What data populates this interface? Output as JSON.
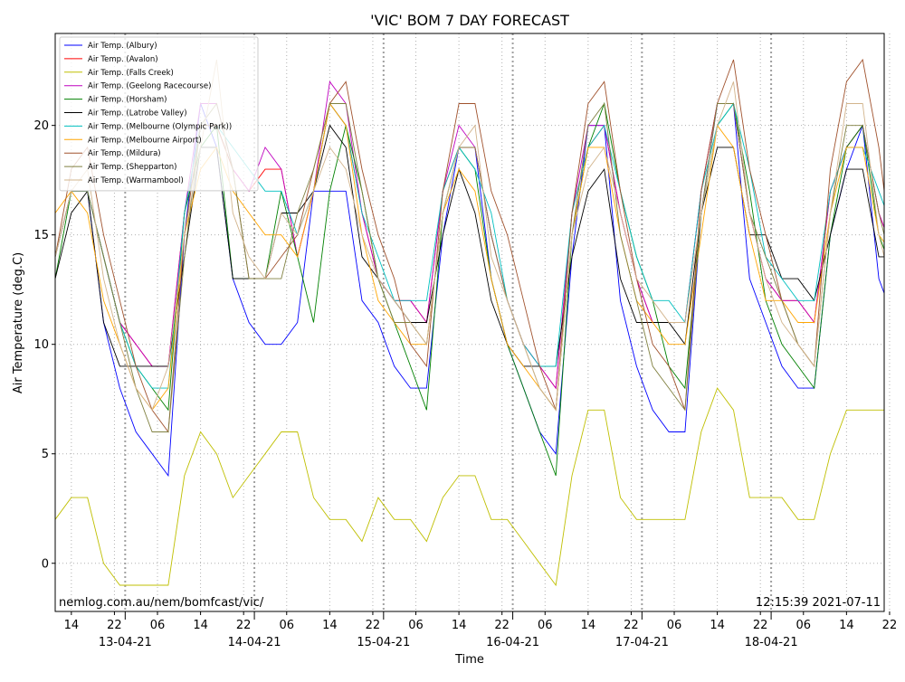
{
  "chart_data": {
    "type": "line",
    "title": "'VIC' BOM 7 DAY FORECAST",
    "xlabel": "Time",
    "ylabel": "Air Temperature (deg.C)",
    "ylim": [
      -2.2,
      24.2
    ],
    "yticks": [
      0,
      5,
      10,
      15,
      20
    ],
    "xlim": [
      11,
      165
    ],
    "grid": true,
    "legend_position": "top-left",
    "hour_ticks": [
      {
        "x": 14,
        "label": "14"
      },
      {
        "x": 22,
        "label": "22"
      },
      {
        "x": 30,
        "label": "06"
      },
      {
        "x": 38,
        "label": "14"
      },
      {
        "x": 46,
        "label": "22"
      },
      {
        "x": 54,
        "label": "06"
      },
      {
        "x": 62,
        "label": "14"
      },
      {
        "x": 70,
        "label": "22"
      },
      {
        "x": 78,
        "label": "06"
      },
      {
        "x": 86,
        "label": "14"
      },
      {
        "x": 94,
        "label": "22"
      },
      {
        "x": 102,
        "label": "06"
      },
      {
        "x": 110,
        "label": "14"
      },
      {
        "x": 118,
        "label": "22"
      },
      {
        "x": 126,
        "label": "06"
      },
      {
        "x": 134,
        "label": "14"
      },
      {
        "x": 142,
        "label": "22"
      },
      {
        "x": 150,
        "label": "06"
      },
      {
        "x": 158,
        "label": "14"
      },
      {
        "x": 166,
        "label": "22"
      }
    ],
    "day_ticks": [
      {
        "x": 24,
        "label": "13-04-21"
      },
      {
        "x": 48,
        "label": "14-04-21"
      },
      {
        "x": 72,
        "label": "15-04-21"
      },
      {
        "x": 96,
        "label": "16-04-21"
      },
      {
        "x": 120,
        "label": "17-04-21"
      },
      {
        "x": 144,
        "label": "18-04-21"
      }
    ],
    "x": [
      11,
      14,
      17,
      20,
      23,
      26,
      29,
      32,
      35,
      38,
      41,
      44,
      47,
      50,
      53,
      56,
      59,
      62,
      65,
      68,
      71,
      74,
      77,
      80,
      83,
      86,
      89,
      92,
      95,
      98,
      101,
      104,
      107,
      110,
      113,
      116,
      119,
      122,
      125,
      128,
      131,
      134,
      137,
      140,
      143,
      146,
      149,
      152,
      155,
      158,
      161,
      164,
      167
    ],
    "series": [
      {
        "name": "Air Temp. (Albury)",
        "color": "#0000ff",
        "values": [
          14,
          17,
          17,
          11,
          8,
          6,
          5,
          4,
          15,
          21,
          19,
          13,
          11,
          10,
          10,
          11,
          17,
          17,
          17,
          12,
          11,
          9,
          8,
          8,
          15,
          19,
          19,
          13,
          10,
          8,
          6,
          5,
          14,
          20,
          20,
          12,
          9,
          7,
          6,
          6,
          16,
          21,
          21,
          13,
          11,
          9,
          8,
          8,
          15,
          18,
          20,
          13,
          11
        ]
      },
      {
        "name": "Air Temp. (Avalon)",
        "color": "#ff0000",
        "values": [
          14,
          17,
          17,
          14,
          11,
          10,
          9,
          9,
          16,
          20,
          20,
          18,
          17,
          18,
          18,
          14,
          17,
          21,
          20,
          16,
          13,
          12,
          12,
          11,
          17,
          19,
          19,
          15,
          12,
          10,
          9,
          8,
          16,
          19,
          20,
          16,
          13,
          11,
          11,
          11,
          17,
          21,
          21,
          16,
          13,
          12,
          12,
          11,
          17,
          19,
          20,
          16,
          14
        ]
      },
      {
        "name": "Air Temp. (Falls Creek)",
        "color": "#bfbf00",
        "values": [
          2,
          3,
          3,
          0,
          -1,
          -1,
          -1,
          -1,
          4,
          6,
          5,
          3,
          4,
          5,
          6,
          6,
          3,
          2,
          2,
          1,
          3,
          2,
          2,
          1,
          3,
          4,
          4,
          2,
          2,
          1,
          0,
          -1,
          4,
          7,
          7,
          3,
          2,
          2,
          2,
          2,
          6,
          8,
          7,
          3,
          3,
          3,
          2,
          2,
          5,
          7,
          7,
          7,
          7
        ]
      },
      {
        "name": "Air Temp. (Geelong Racecourse)",
        "color": "#bf00bf",
        "values": [
          14,
          17,
          17,
          14,
          11,
          10,
          9,
          9,
          16,
          21,
          21,
          18,
          17,
          19,
          18,
          14,
          17,
          22,
          21,
          16,
          13,
          12,
          12,
          11,
          17,
          20,
          19,
          15,
          12,
          10,
          9,
          8,
          16,
          20,
          20,
          16,
          13,
          11,
          11,
          11,
          17,
          21,
          21,
          16,
          13,
          12,
          12,
          11,
          17,
          19,
          20,
          16,
          14
        ]
      },
      {
        "name": "Air Temp. (Horsham)",
        "color": "#008000",
        "values": [
          13,
          17,
          17,
          14,
          11,
          9,
          8,
          7,
          16,
          19,
          20,
          13,
          13,
          13,
          17,
          14,
          11,
          17,
          20,
          17,
          13,
          11,
          9,
          7,
          16,
          19,
          18,
          13,
          10,
          8,
          6,
          4,
          15,
          19,
          21,
          17,
          14,
          12,
          9,
          8,
          16,
          20,
          21,
          17,
          12,
          10,
          9,
          8,
          15,
          19,
          20,
          15,
          13
        ]
      },
      {
        "name": "Air Temp. (Latrobe Valley)",
        "color": "#000000",
        "values": [
          13,
          16,
          17,
          11,
          9,
          9,
          9,
          9,
          14,
          19,
          19,
          13,
          13,
          13,
          16,
          16,
          17,
          20,
          19,
          14,
          13,
          12,
          11,
          11,
          15,
          18,
          16,
          12,
          10,
          9,
          9,
          9,
          14,
          17,
          18,
          13,
          11,
          11,
          11,
          10,
          16,
          19,
          19,
          15,
          15,
          13,
          13,
          12,
          15,
          18,
          18,
          14,
          14
        ]
      },
      {
        "name": "Air Temp. (Melbourne (Olympic Park))",
        "color": "#00bfbf",
        "values": [
          14,
          17,
          17,
          14,
          11,
          9,
          8,
          8,
          16,
          20,
          20,
          19,
          18,
          17,
          17,
          15,
          17,
          21,
          20,
          16,
          14,
          12,
          12,
          12,
          17,
          19,
          18,
          16,
          12,
          10,
          9,
          9,
          16,
          19,
          20,
          17,
          14,
          12,
          12,
          11,
          17,
          20,
          21,
          18,
          14,
          13,
          12,
          12,
          17,
          19,
          19,
          17,
          15
        ]
      },
      {
        "name": "Air Temp. (Melbourne Airport)",
        "color": "#ffa500",
        "values": [
          16,
          17,
          16,
          12,
          10,
          8,
          7,
          8,
          15,
          18,
          19,
          17,
          16,
          15,
          15,
          14,
          17,
          21,
          20,
          15,
          12,
          11,
          10,
          10,
          16,
          18,
          17,
          13,
          10,
          9,
          8,
          7,
          15,
          19,
          19,
          15,
          12,
          11,
          10,
          10,
          15,
          20,
          19,
          15,
          12,
          12,
          11,
          11,
          16,
          19,
          19,
          15,
          14
        ]
      },
      {
        "name": "Air Temp. (Mildura)",
        "color": "#a0522d",
        "values": [
          14,
          18,
          19,
          15,
          12,
          9,
          7,
          6,
          15,
          20,
          20,
          18,
          13,
          13,
          14,
          15,
          18,
          21,
          22,
          18,
          15,
          13,
          10,
          9,
          17,
          21,
          21,
          17,
          15,
          12,
          9,
          7,
          16,
          21,
          22,
          17,
          13,
          10,
          9,
          7,
          17,
          21,
          23,
          18,
          15,
          12,
          10,
          9,
          18,
          22,
          23,
          19,
          13
        ]
      },
      {
        "name": "Air Temp. (Shepparton)",
        "color": "#808040",
        "values": [
          14,
          17,
          17,
          14,
          11,
          8,
          6,
          6,
          14,
          20,
          21,
          18,
          13,
          13,
          13,
          16,
          18,
          21,
          21,
          17,
          13,
          11,
          11,
          10,
          16,
          19,
          19,
          15,
          12,
          10,
          8,
          7,
          15,
          20,
          21,
          15,
          12,
          9,
          8,
          7,
          16,
          21,
          21,
          16,
          14,
          12,
          10,
          9,
          16,
          20,
          20,
          16,
          13
        ]
      },
      {
        "name": "Air Temp. (Warrnambool)",
        "color": "#d2b48c",
        "values": [
          14,
          17,
          18,
          13,
          10,
          8,
          7,
          9,
          15,
          19,
          23,
          16,
          14,
          13,
          16,
          15,
          17,
          19,
          18,
          15,
          13,
          12,
          11,
          10,
          16,
          19,
          20,
          14,
          12,
          10,
          8,
          7,
          15,
          18,
          19,
          16,
          13,
          12,
          11,
          11,
          16,
          20,
          22,
          16,
          13,
          11,
          10,
          9,
          16,
          21,
          21,
          15,
          12
        ]
      }
    ],
    "footer_left": "nemlog.com.au/nem/bomfcast/vic/",
    "footer_right": "12:15:39 2021-07-11"
  }
}
